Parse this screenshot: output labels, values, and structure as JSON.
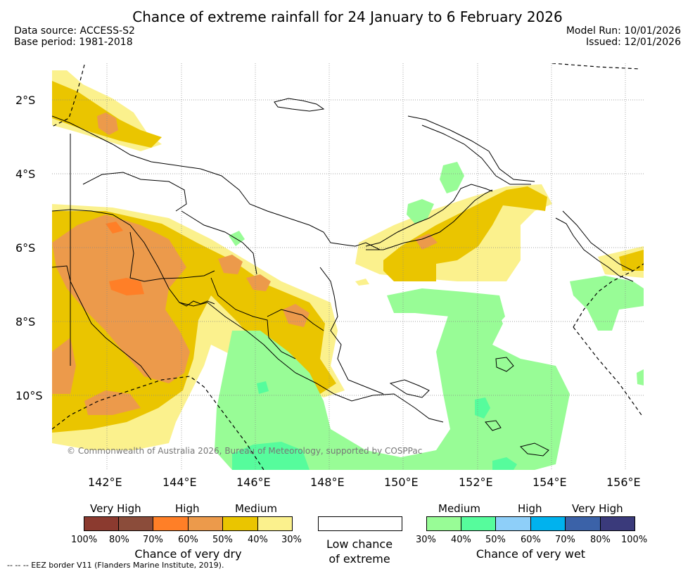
{
  "header": {
    "title": "Chance of extreme rainfall for 24 January to 6 February 2026",
    "data_source": "Data source: ACCESS-S2",
    "base_period": "Base period: 1981-2018",
    "model_run": "Model Run: 10/01/2026",
    "issued": "Issued: 12/01/2026"
  },
  "map": {
    "lat_labels": [
      "2°S",
      "4°S",
      "6°S",
      "8°S",
      "10°S"
    ],
    "lon_labels": [
      "142°E",
      "144°E",
      "146°E",
      "148°E",
      "150°E",
      "152°E",
      "154°E",
      "156°E"
    ],
    "copyright": "© Commonwealth of Australia 2026, Bureau of Meteorology, supported by COSPPac"
  },
  "legend": {
    "dry": {
      "levels": [
        "Very High",
        "High",
        "Medium"
      ],
      "colors": [
        "#8b3a2f",
        "#8b4c3a",
        "#ff7f27",
        "#ec9a4b",
        "#eac500",
        "#fbf18d"
      ],
      "ticks": [
        "100%",
        "80%",
        "70%",
        "60%",
        "50%",
        "40%",
        "30%"
      ],
      "title": "Chance of very dry"
    },
    "low": {
      "title_line1": "Low chance",
      "title_line2": "of extreme"
    },
    "wet": {
      "levels": [
        "Medium",
        "High",
        "Very High"
      ],
      "colors": [
        "#98fc96",
        "#56fc9c",
        "#8ecff9",
        "#00b2ee",
        "#3b62a8",
        "#3a3a7b"
      ],
      "ticks": [
        "30%",
        "40%",
        "50%",
        "60%",
        "70%",
        "80%",
        "100%"
      ],
      "title": "Chance of very wet"
    }
  },
  "footnote": "--  --  -- EEZ border V11 (Flanders Marine Institute, 2019)."
}
